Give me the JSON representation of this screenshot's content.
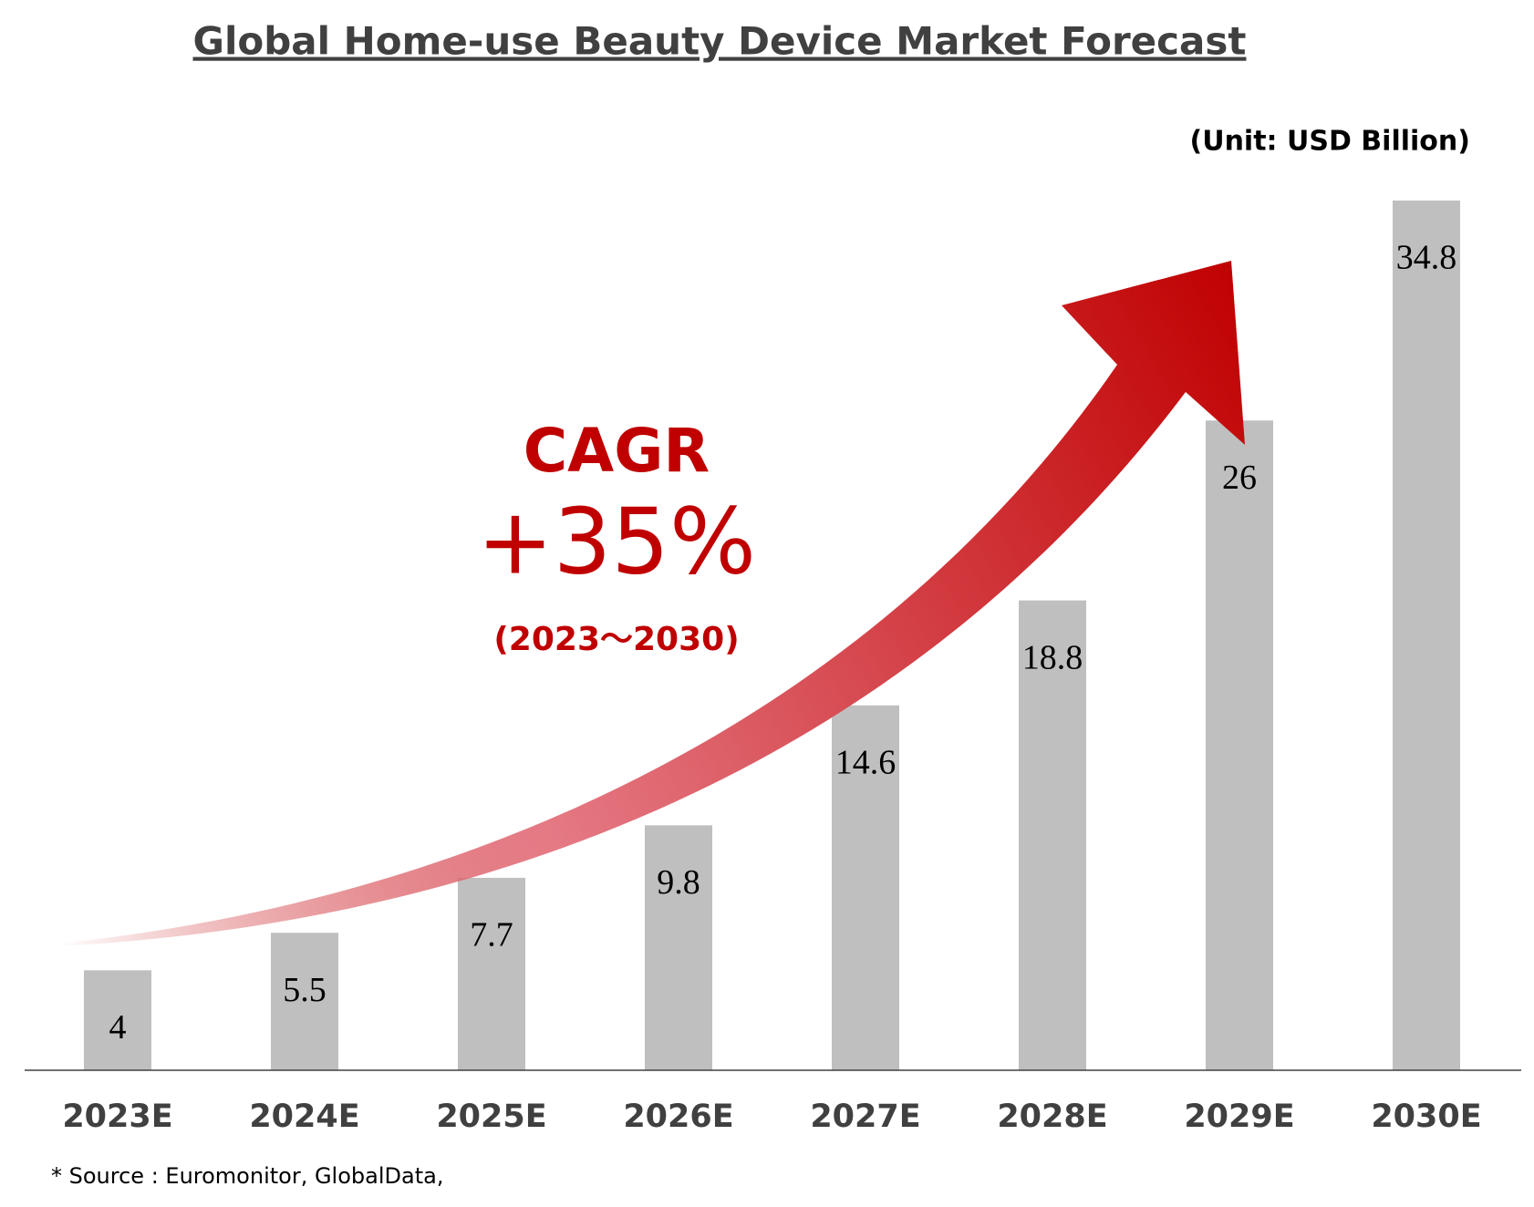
{
  "chart_data": {
    "type": "bar",
    "title": "Global Home-use Beauty Device Market Forecast",
    "unit_note": "(Unit: USD Billion)",
    "annotations": [
      "CAGR",
      "+35%",
      "(2023～2030)"
    ],
    "source": "* Source : Euromonitor, GlobalData,",
    "categories": [
      "2023E",
      "2024E",
      "2025E",
      "2026E",
      "2027E",
      "2028E",
      "2029E",
      "2030E"
    ],
    "values": [
      4,
      5.5,
      7.7,
      9.8,
      14.6,
      18.8,
      26,
      34.8
    ],
    "color": "#bfbfbf",
    "ylim": [
      0,
      35
    ]
  }
}
